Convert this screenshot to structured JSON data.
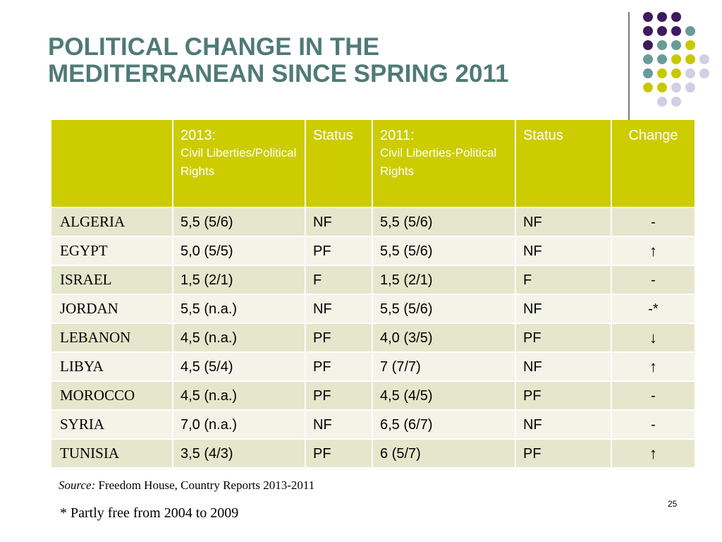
{
  "title": {
    "line1": "POLITICAL CHANGE IN THE",
    "line2": "MEDITERRANEAN SINCE SPRING 2011"
  },
  "colors": {
    "title": "#4f7a78",
    "header_bg": "#cccc00",
    "row_dark": "#e6e6cc",
    "row_light": "#f3f3e8",
    "dot_purple": "#3e1a5e",
    "dot_teal": "#6a9a9a",
    "dot_olive": "#c8c800",
    "dot_lavender": "#d0cfe3"
  },
  "table": {
    "headers": [
      {
        "main": "",
        "sub": ""
      },
      {
        "main": "2013:",
        "sub": "Civil Liberties/Political Rights"
      },
      {
        "main": "Status",
        "sub": ""
      },
      {
        "main": "2011:",
        "sub": "Civil Liberties-Political Rights"
      },
      {
        "main": "Status",
        "sub": ""
      },
      {
        "main": "Change",
        "sub": ""
      }
    ],
    "rows": [
      {
        "country": "ALGERIA",
        "cl2013": "5,5 (5/6)",
        "status2013": "NF",
        "cl2011": "5,5 (5/6)",
        "status2011": "NF",
        "change": "-"
      },
      {
        "country": "EGYPT",
        "cl2013": "5,0 (5/5)",
        "status2013": "PF",
        "cl2011": "5,5 (5/6)",
        "status2011": "NF",
        "change": "↑"
      },
      {
        "country": "ISRAEL",
        "cl2013": "1,5 (2/1)",
        "status2013": "F",
        "cl2011": "1,5 (2/1)",
        "status2011": "F",
        "change": "-"
      },
      {
        "country": "JORDAN",
        "cl2013": "5,5 (n.a.)",
        "status2013": "NF",
        "cl2011": "5,5 (5/6)",
        "status2011": "NF",
        "change": "-*"
      },
      {
        "country": "LEBANON",
        "cl2013": "4,5 (n.a.)",
        "status2013": "PF",
        "cl2011": "4,0 (3/5)",
        "status2011": "PF",
        "change": "↓"
      },
      {
        "country": "LIBYA",
        "cl2013": "4,5 (5/4)",
        "status2013": "PF",
        "cl2011": "7 (7/7)",
        "status2011": "NF",
        "change": "↑"
      },
      {
        "country": "MOROCCO",
        "cl2013": "4,5 (n.a.)",
        "status2013": "PF",
        "cl2011": "4,5 (4/5)",
        "status2011": "PF",
        "change": "-"
      },
      {
        "country": "SYRIA",
        "cl2013": "7,0 (n.a.)",
        "status2013": "NF",
        "cl2011": "6,5 (6/7)",
        "status2011": "NF",
        "change": "-"
      },
      {
        "country": "TUNISIA",
        "cl2013": "3,5 (4/3)",
        "status2013": "PF",
        "cl2011": "6 (5/7)",
        "status2011": "PF",
        "change": "↑"
      }
    ]
  },
  "source": {
    "label": "Source:",
    "text": " Freedom House, Country Reports 2013-2011"
  },
  "note": "* Partly free from 2004 to 2009",
  "page_number": "25"
}
